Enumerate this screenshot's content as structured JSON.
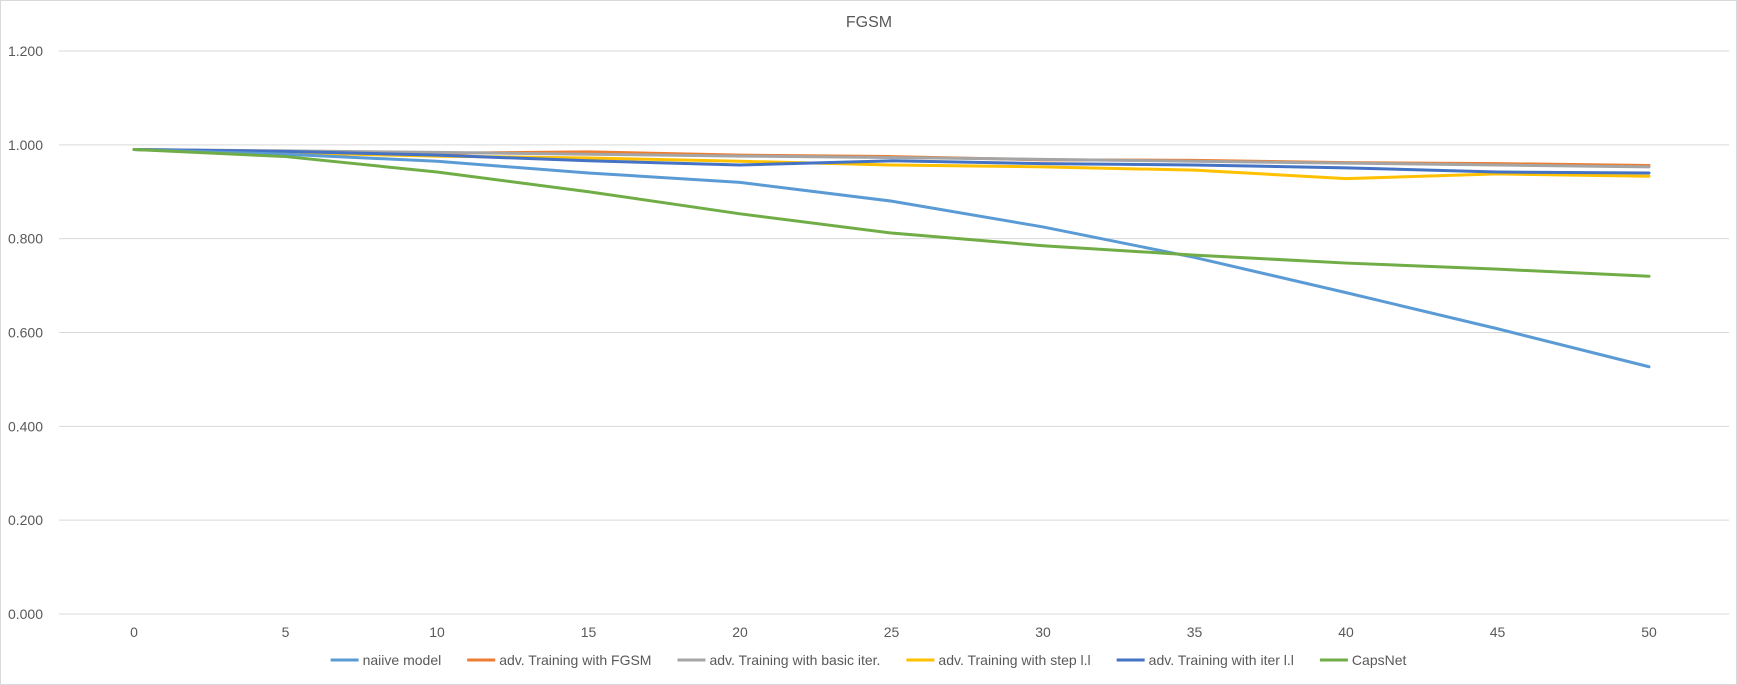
{
  "chart_data": {
    "type": "line",
    "title": "FGSM",
    "xlabel": "",
    "ylabel": "",
    "x": [
      0,
      5,
      10,
      15,
      20,
      25,
      30,
      35,
      40,
      45,
      50
    ],
    "x_tick_labels": [
      "0",
      "5",
      "10",
      "15",
      "20",
      "25",
      "30",
      "35",
      "40",
      "45",
      "50"
    ],
    "ylim": [
      0,
      1.2
    ],
    "y_ticks": [
      0,
      0.2,
      0.4,
      0.6,
      0.8,
      1.0,
      1.2
    ],
    "y_tick_labels": [
      "0.000",
      "0.200",
      "0.400",
      "0.600",
      "0.800",
      "1.000",
      "1.200"
    ],
    "grid": true,
    "legend_position": "bottom",
    "series": [
      {
        "name": "naiive model",
        "color": "#5b9bd5",
        "values": [
          0.99,
          0.98,
          0.965,
          0.94,
          0.92,
          0.88,
          0.825,
          0.76,
          0.685,
          0.608,
          0.527
        ]
      },
      {
        "name": "adv. Training with FGSM",
        "color": "#ed7d31",
        "values": [
          0.99,
          0.985,
          0.982,
          0.985,
          0.978,
          0.975,
          0.968,
          0.967,
          0.962,
          0.96,
          0.956
        ]
      },
      {
        "name": "adv. Training with basic iter.",
        "color": "#a5a5a5",
        "values": [
          0.99,
          0.987,
          0.984,
          0.98,
          0.976,
          0.973,
          0.969,
          0.965,
          0.961,
          0.957,
          0.953
        ]
      },
      {
        "name": "adv. Training with step l.l",
        "color": "#ffc000",
        "values": [
          0.99,
          0.983,
          0.976,
          0.972,
          0.965,
          0.957,
          0.953,
          0.946,
          0.928,
          0.938,
          0.933
        ]
      },
      {
        "name": "adv. Training with iter l.l",
        "color": "#4472c4",
        "values": [
          0.99,
          0.986,
          0.978,
          0.966,
          0.957,
          0.966,
          0.96,
          0.957,
          0.951,
          0.942,
          0.94
        ]
      },
      {
        "name": "CapsNet",
        "color": "#70ad47",
        "values": [
          0.99,
          0.975,
          0.942,
          0.9,
          0.853,
          0.812,
          0.785,
          0.765,
          0.748,
          0.735,
          0.72
        ]
      }
    ]
  }
}
